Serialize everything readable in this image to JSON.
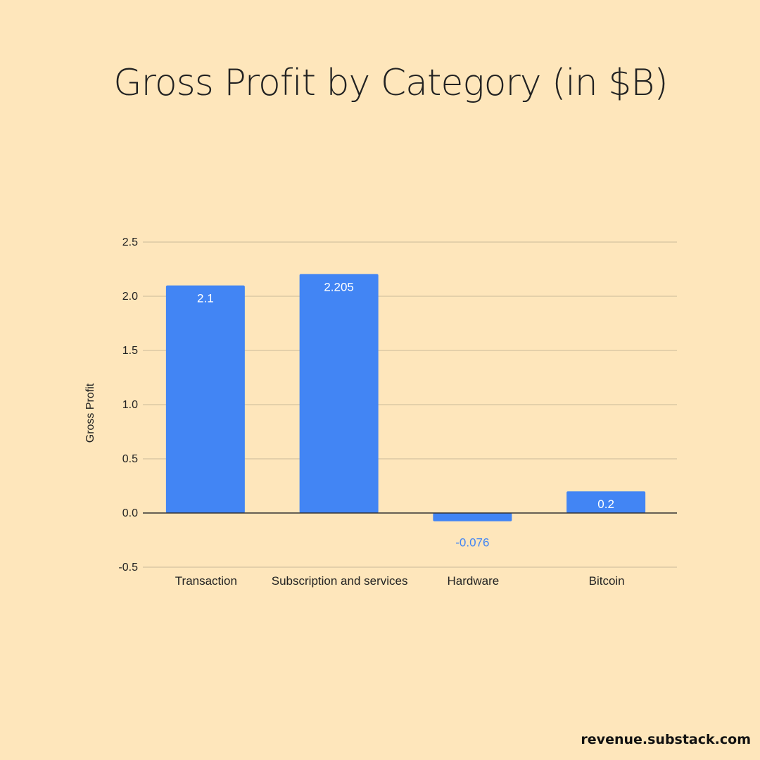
{
  "chart_data": {
    "type": "bar",
    "title": "Gross Profit by Category (in $B)",
    "xlabel": "",
    "ylabel": "Gross Profit",
    "categories": [
      "Transaction",
      "Subscription and services",
      "Hardware",
      "Bitcoin"
    ],
    "values": [
      2.1,
      2.205,
      -0.076,
      0.2
    ],
    "data_labels": [
      "2.1",
      "2.205",
      "-0.076",
      "0.2"
    ],
    "ylim": [
      -0.5,
      2.5
    ],
    "yticks": [
      2.5,
      2.0,
      1.5,
      1.0,
      0.5,
      0.0,
      -0.5
    ],
    "ytick_labels": [
      "2.5",
      "2.0",
      "1.5",
      "1.0",
      "0.5",
      "0.0",
      "-0.5"
    ],
    "grid": true,
    "bar_color": "#4285f4",
    "gridline_color": "#d4c4a0",
    "label_inside_color": "#ffffff"
  },
  "watermark": "revenue.substack.com"
}
